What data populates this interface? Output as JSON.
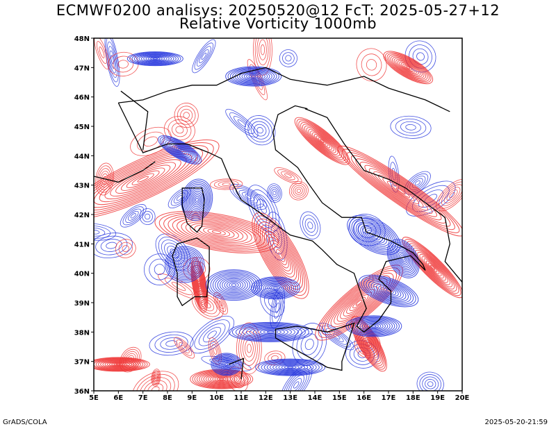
{
  "title": {
    "line1": "ECMWF0200 analisys: 20250520@12 FcT: 2025-05-27+12",
    "line2": "Relative Vorticity 1000mb"
  },
  "map": {
    "extent": {
      "lon_min": 5,
      "lon_max": 20,
      "lat_min": 36,
      "lat_max": 48
    },
    "lat_labels": [
      "36N",
      "37N",
      "38N",
      "39N",
      "40N",
      "41N",
      "42N",
      "43N",
      "44N",
      "45N",
      "46N",
      "47N",
      "48N"
    ],
    "lon_labels": [
      "5E",
      "6E",
      "7E",
      "8E",
      "9E",
      "10E",
      "11E",
      "12E",
      "13E",
      "14E",
      "15E",
      "16E",
      "17E",
      "18E",
      "19E",
      "20E"
    ],
    "colors": {
      "positive": "#ee3333",
      "negative": "#2233dd",
      "coast": "#000000",
      "frame": "#000000"
    }
  },
  "footer": {
    "left": "GrADS/COLA",
    "right": "2025-05-20-21:59"
  }
}
